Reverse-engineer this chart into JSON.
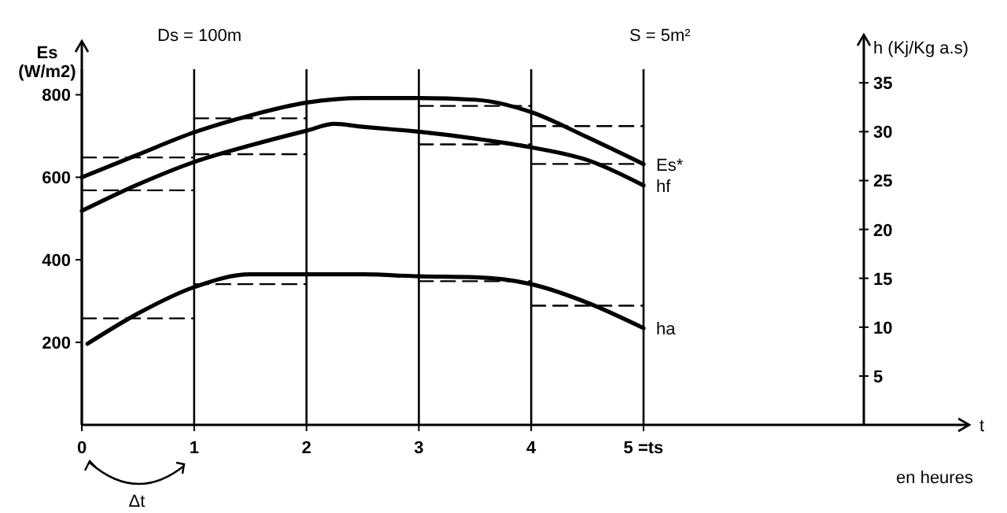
{
  "chart_data": {
    "type": "line",
    "xlabel": "t",
    "ylabel": "Es (W/m2)",
    "y2label": "h (Kj/Kg a.s)",
    "annotations": [
      "Ds = 100m",
      "S = 5m²",
      "en heures",
      "Δt"
    ],
    "xlim": [
      0,
      7.9
    ],
    "xticks": [
      0,
      1,
      2,
      3,
      4,
      {
        "value": 5,
        "label": "5 =ts"
      }
    ],
    "ylim": [
      0,
      900
    ],
    "yticks": [
      200,
      400,
      600,
      800
    ],
    "y2lim": [
      0,
      38
    ],
    "y2ticks": [
      5,
      10,
      15,
      20,
      25,
      30,
      35
    ],
    "grid": "x",
    "marker": "none",
    "series": [
      {
        "name": "Es*",
        "color": "#000000",
        "x": [
          0,
          0.5,
          1,
          1.5,
          2,
          2.5,
          3,
          3.5,
          4,
          4.5,
          5
        ],
        "values": [
          600,
          655,
          709,
          750,
          781,
          792,
          792,
          788,
          758,
          697,
          632
        ]
      },
      {
        "name": "hf",
        "color": "#000000",
        "axis": "y2",
        "x": [
          0,
          0.5,
          1,
          1.5,
          2,
          2.25,
          2.5,
          3,
          3.5,
          4,
          4.5,
          5
        ],
        "values": [
          21.9,
          24.6,
          26.9,
          28.6,
          30.1,
          30.8,
          30.5,
          30.0,
          29.3,
          28.4,
          27.1,
          24.5
        ]
      },
      {
        "name": "ha",
        "color": "#000000",
        "axis": "y2",
        "x": [
          0.05,
          0.5,
          1,
          1.5,
          2,
          2.5,
          3,
          3.5,
          4,
          4.5,
          5
        ],
        "values": [
          8.3,
          11.4,
          14.1,
          15.4,
          15.4,
          15.4,
          15.2,
          15.1,
          14.4,
          12.5,
          9.9
        ]
      },
      {
        "line_style": "dashed",
        "color": "#000000",
        "x": [
          0,
          1,
          null,
          1,
          2,
          null,
          3,
          4,
          null,
          4,
          5
        ],
        "values": [
          648,
          648,
          null,
          743,
          743,
          null,
          773,
          773,
          null,
          724,
          724
        ]
      },
      {
        "line_style": "dashed",
        "color": "#000000",
        "axis": "y2",
        "x": [
          0,
          1,
          null,
          1,
          2,
          null,
          3,
          4,
          null,
          4,
          5
        ],
        "values": [
          24.0,
          24.0,
          null,
          27.7,
          27.7,
          null,
          28.7,
          28.7,
          null,
          26.7,
          26.7
        ]
      },
      {
        "line_style": "dashed",
        "color": "#000000",
        "axis": "y2",
        "x": [
          0,
          1,
          null,
          1,
          2,
          null,
          3,
          4,
          null,
          4,
          5
        ],
        "values": [
          10.9,
          10.9,
          null,
          14.4,
          14.4,
          null,
          14.7,
          14.7,
          null,
          12.2,
          12.2
        ]
      }
    ]
  }
}
